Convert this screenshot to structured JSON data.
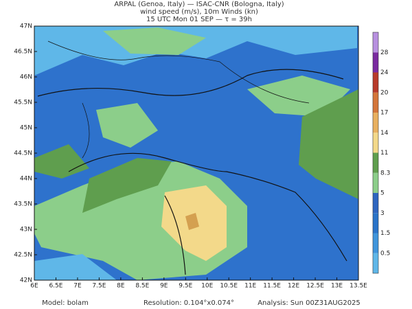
{
  "header": {
    "line1": "ARPAL (Genoa, Italy)  —  ISAC-CNR (Bologna, Italy)",
    "line2": "wind speed (m/s), 10m Winds (kn)",
    "line3": "15 UTC Mon 01 SEP  —  τ = 39h"
  },
  "map": {
    "lat_labels": [
      "47N",
      "46.5N",
      "46N",
      "45.5N",
      "45N",
      "44.5N",
      "44N",
      "43.5N",
      "43N",
      "42.5N",
      "42N"
    ],
    "lon_labels": [
      "6E",
      "6.5E",
      "7E",
      "7.5E",
      "8E",
      "8.5E",
      "9E",
      "9.5E",
      "10E",
      "10.5E",
      "11E",
      "11.5E",
      "12E",
      "12.5E",
      "13E",
      "13.5E"
    ]
  },
  "colorbar": {
    "labels": [
      "0.5",
      "1.5",
      "3",
      "5",
      "8.3",
      "11",
      "14",
      "17",
      "20",
      "24",
      "28"
    ],
    "colors": [
      "#5fb7e8",
      "#3f95dc",
      "#2a74c9",
      "#2e66c0",
      "#8cce8a",
      "#5f9e4e",
      "#f3d98a",
      "#e8b060",
      "#d4763a",
      "#b83a2a",
      "#7a2aa0",
      "#b890e0"
    ]
  },
  "footer": {
    "model": "Model: bolam",
    "resolution": "Resolution: 0.104°x0.074°",
    "analysis": "Analysis: Sun 00Z31AUG2025"
  }
}
